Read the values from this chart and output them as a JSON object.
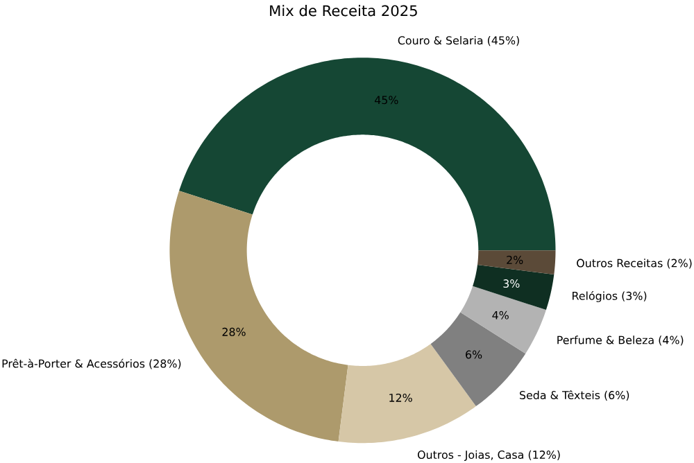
{
  "chart_data": {
    "type": "donut",
    "title": "Mix de Receita 2025",
    "categories": [
      "Couro & Selaria (45%)",
      "Prêt-à-Porter & Acessórios (28%)",
      "Outros - Joias, Casa (12%)",
      "Seda & Têxteis (6%)",
      "Perfume & Beleza (4%)",
      "Relógios (3%)",
      "Outros Receitas (2%)"
    ],
    "values": [
      45,
      28,
      12,
      6,
      4,
      3,
      2
    ],
    "value_labels": [
      "45%",
      "28%",
      "12%",
      "6%",
      "4%",
      "3%",
      "2%"
    ],
    "colors": [
      "#154734",
      "#ad9a6c",
      "#d6c7a7",
      "#808080",
      "#b3b3b3",
      "#0f2f22",
      "#5b4a38"
    ]
  }
}
